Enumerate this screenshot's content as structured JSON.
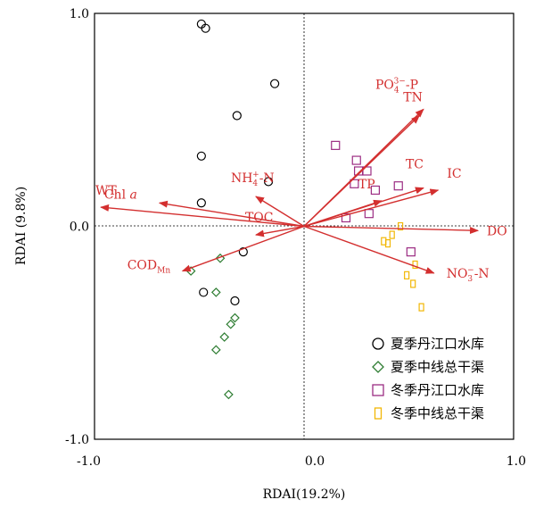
{
  "chart_data": {
    "type": "scatter",
    "xlabel": "RDAⅠ(19.2%)",
    "ylabel": "RDAⅠ (9.8%)",
    "xlim": [
      -1.0,
      1.0
    ],
    "ylim": [
      -1.0,
      1.0
    ],
    "xticks": [
      "-1.0",
      "0.0",
      "1.0"
    ],
    "yticks": [
      "-1.0",
      "0.0",
      "1.0"
    ],
    "grid": false,
    "legend_position": "bottom-right",
    "zero_lines": true,
    "series": [
      {
        "name": "夏季丹江口水库",
        "marker": "circle",
        "color": "#000000",
        "points": [
          [
            -0.49,
            0.95
          ],
          [
            -0.47,
            0.93
          ],
          [
            -0.14,
            0.67
          ],
          [
            -0.32,
            0.52
          ],
          [
            -0.49,
            0.33
          ],
          [
            -0.17,
            0.21
          ],
          [
            -0.49,
            0.11
          ],
          [
            -0.29,
            -0.12
          ],
          [
            -0.48,
            -0.31
          ],
          [
            -0.33,
            -0.35
          ]
        ]
      },
      {
        "name": "夏季中线总干渠",
        "marker": "diamond",
        "color": "#2e7d32",
        "points": [
          [
            -0.54,
            -0.21
          ],
          [
            -0.4,
            -0.15
          ],
          [
            -0.42,
            -0.31
          ],
          [
            -0.33,
            -0.43
          ],
          [
            -0.35,
            -0.46
          ],
          [
            -0.38,
            -0.52
          ],
          [
            -0.42,
            -0.58
          ],
          [
            -0.36,
            -0.79
          ]
        ]
      },
      {
        "name": "冬季丹江口水库",
        "marker": "square",
        "color": "#9c2d83",
        "points": [
          [
            0.15,
            0.38
          ],
          [
            0.25,
            0.31
          ],
          [
            0.26,
            0.26
          ],
          [
            0.3,
            0.26
          ],
          [
            0.24,
            0.2
          ],
          [
            0.34,
            0.17
          ],
          [
            0.45,
            0.19
          ],
          [
            0.2,
            0.04
          ],
          [
            0.31,
            0.06
          ],
          [
            0.51,
            -0.12
          ]
        ]
      },
      {
        "name": "冬季中线总干渠",
        "marker": "rect",
        "color": "#f2b705",
        "points": [
          [
            0.46,
            0.0
          ],
          [
            0.42,
            -0.04
          ],
          [
            0.38,
            -0.07
          ],
          [
            0.4,
            -0.08
          ],
          [
            0.53,
            -0.18
          ],
          [
            0.49,
            -0.23
          ],
          [
            0.52,
            -0.27
          ],
          [
            0.56,
            -0.38
          ]
        ]
      }
    ],
    "vectors": [
      {
        "id": "po4",
        "label": "PO",
        "end": [
          0.57,
          0.55
        ]
      },
      {
        "id": "tn",
        "label": "TN",
        "end": [
          0.55,
          0.52
        ]
      },
      {
        "id": "tc",
        "label": "TC",
        "end": [
          0.57,
          0.18
        ]
      },
      {
        "id": "ic",
        "label": "IC",
        "end": [
          0.64,
          0.17
        ]
      },
      {
        "id": "tp",
        "label": "TP",
        "end": [
          0.37,
          0.12
        ]
      },
      {
        "id": "do",
        "label": "DO",
        "end": [
          0.83,
          -0.02
        ]
      },
      {
        "id": "no3",
        "label": "NO",
        "end": [
          0.62,
          -0.22
        ]
      },
      {
        "id": "toc",
        "label": "TOC",
        "end": [
          -0.23,
          -0.04
        ]
      },
      {
        "id": "nh4",
        "label": "NH",
        "end": [
          -0.23,
          0.14
        ]
      },
      {
        "id": "chla",
        "label": "Chl",
        "end": [
          -0.69,
          0.11
        ]
      },
      {
        "id": "wt",
        "label": "WT",
        "end": [
          -0.97,
          0.09
        ]
      },
      {
        "id": "codmn",
        "label": "COD",
        "end": [
          -0.58,
          -0.21
        ]
      }
    ],
    "vector_color": "#d32f2f"
  }
}
